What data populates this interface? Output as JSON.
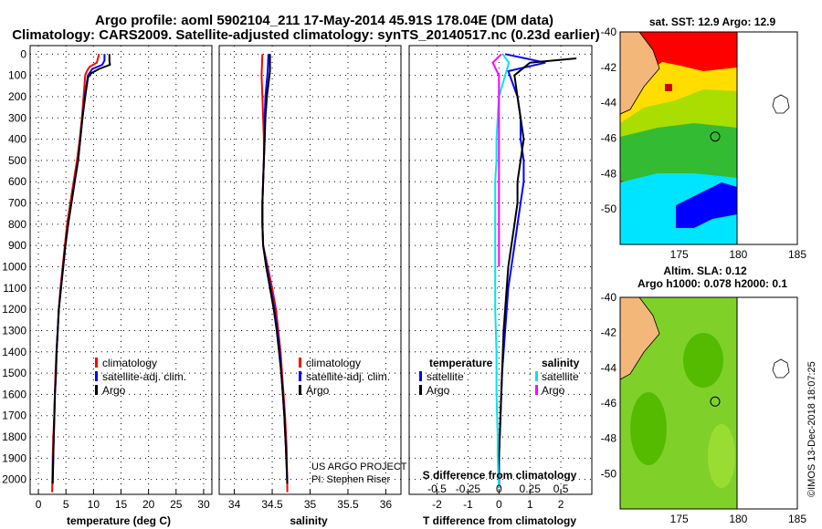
{
  "header": {
    "line1": "Argo profile: aoml 5902104_211 17-May-2014 45.91S 178.04E (DM data)",
    "line2": "Climatology: CARS2009. Satellite-adjusted climatology: synTS_20140517.nc (0.23d earlier)"
  },
  "colors": {
    "climatology": "#ff0000",
    "satellite": "#0000ff",
    "argo": "#000000",
    "salinity_diff": "#00e5ee",
    "argo_salinity_diff": "#ff00ff",
    "land": "#f4b77a"
  },
  "legend": {
    "climatology": "climatology",
    "satellite_adj": "satellite-adj. clim.",
    "argo": "Argo",
    "temperature": "temperature",
    "salinity": "salinity",
    "satellite": "satellite"
  },
  "credit": {
    "line1": "US ARGO PROJECT",
    "line2": "PI: Stephen Riser"
  },
  "side": {
    "sst_title": "sat. SST: 12.9 Argo: 12.9",
    "sla_title1": "Altim. SLA: 0.12",
    "sla_title2": "Argo h1000: 0.078 h2000: 0.1",
    "stamp": "©IMOS 13-Dec-2018 18:07:25"
  },
  "chart_data": [
    {
      "type": "line",
      "xlabel": "temperature (deg C)",
      "ylabel": "",
      "xlim": [
        -1.5,
        31.5
      ],
      "ylim": [
        2070,
        -40
      ],
      "xticks": [
        "0",
        "5",
        "10",
        "15",
        "20",
        "25",
        "30"
      ],
      "yticks": [
        "0",
        "100",
        "200",
        "300",
        "400",
        "500",
        "600",
        "700",
        "800",
        "900",
        "1000",
        "1100",
        "1200",
        "1300",
        "1400",
        "1500",
        "1600",
        "1700",
        "1800",
        "1900",
        "2000"
      ],
      "series": [
        {
          "name": "climatology",
          "x": [
            11.0,
            10.6,
            9.3,
            8.8,
            8.5,
            8.2,
            7.9,
            7.5,
            7.0,
            6.4,
            5.8,
            5.2,
            4.8,
            4.4,
            4.0,
            3.7,
            3.5,
            3.3,
            3.1,
            3.0,
            2.9,
            2.7,
            2.6,
            2.5
          ],
          "y": [
            0,
            40,
            60,
            80,
            100,
            200,
            300,
            400,
            500,
            600,
            700,
            800,
            900,
            1000,
            1100,
            1200,
            1300,
            1400,
            1500,
            1600,
            1700,
            1800,
            1900,
            2060
          ]
        },
        {
          "name": "satellite-adj. clim.",
          "x": [
            12.0,
            12.0,
            11.6,
            9.8,
            9.0,
            8.4,
            8.0,
            7.6,
            7.2,
            6.6,
            6.0,
            5.4,
            4.9,
            4.5,
            4.1,
            3.7,
            3.5,
            3.3,
            3.2,
            3.0,
            2.9,
            2.8,
            2.7,
            2.6
          ],
          "y": [
            0,
            30,
            50,
            70,
            100,
            200,
            300,
            400,
            500,
            600,
            700,
            800,
            900,
            1000,
            1100,
            1200,
            1300,
            1400,
            1500,
            1600,
            1700,
            1800,
            1900,
            2020
          ]
        },
        {
          "name": "Argo",
          "x": [
            12.9,
            12.9,
            13.0,
            11.0,
            9.6,
            9.0,
            8.5,
            8.0,
            7.6,
            7.2,
            6.6,
            6.0,
            5.4,
            4.9,
            4.5,
            4.1,
            3.7,
            3.5,
            3.3,
            3.2,
            3.0,
            2.9,
            2.8,
            2.7,
            2.6
          ],
          "y": [
            0,
            30,
            50,
            70,
            90,
            110,
            200,
            300,
            400,
            500,
            600,
            700,
            800,
            900,
            1000,
            1100,
            1200,
            1300,
            1400,
            1500,
            1600,
            1700,
            1800,
            1900,
            2020
          ]
        }
      ]
    },
    {
      "type": "line",
      "xlabel": "salinity",
      "ylabel": "",
      "xlim": [
        33.8,
        36.2
      ],
      "ylim": [
        2070,
        -40
      ],
      "xticks": [
        "34",
        "34.5",
        "35",
        "35.5",
        "36"
      ],
      "series": [
        {
          "name": "climatology",
          "x": [
            34.37,
            34.36,
            34.37,
            34.38,
            34.39,
            34.39,
            34.38,
            34.37,
            34.37,
            34.38,
            34.44,
            34.5,
            34.55,
            34.58,
            34.61,
            34.63,
            34.65,
            34.67,
            34.69,
            34.7
          ],
          "y": [
            0,
            100,
            200,
            300,
            400,
            500,
            600,
            700,
            800,
            900,
            1000,
            1100,
            1200,
            1300,
            1400,
            1500,
            1600,
            1700,
            1850,
            2060
          ]
        },
        {
          "name": "satellite-adj. clim.",
          "x": [
            34.45,
            34.44,
            34.41,
            34.4,
            34.4,
            34.39,
            34.38,
            34.37,
            34.37,
            34.38,
            34.43,
            34.48,
            34.53,
            34.57,
            34.6,
            34.62,
            34.64,
            34.66,
            34.68,
            34.7
          ],
          "y": [
            0,
            80,
            200,
            300,
            400,
            500,
            600,
            700,
            800,
            900,
            1000,
            1100,
            1200,
            1300,
            1400,
            1500,
            1600,
            1700,
            1850,
            2020
          ]
        },
        {
          "name": "Argo",
          "x": [
            34.47,
            34.47,
            34.43,
            34.41,
            34.4,
            34.39,
            34.38,
            34.37,
            34.37,
            34.38,
            34.42,
            34.47,
            34.52,
            34.56,
            34.59,
            34.62,
            34.64,
            34.66,
            34.68,
            34.7
          ],
          "y": [
            0,
            80,
            200,
            300,
            400,
            500,
            600,
            700,
            800,
            900,
            1000,
            1100,
            1200,
            1300,
            1400,
            1500,
            1600,
            1700,
            1850,
            2020
          ]
        }
      ]
    },
    {
      "type": "line",
      "xlabel": "T difference from climatology",
      "secondary_xlabel": "S difference from climatology",
      "xlim": [
        -2.9,
        3.0
      ],
      "ylim": [
        2070,
        -40
      ],
      "xticks": [
        "-2",
        "-1",
        "0",
        "1",
        "2"
      ],
      "secondary_xticks": [
        "-0.5",
        "-0.25",
        "0",
        "0.25",
        "0.5"
      ],
      "series": [
        {
          "name": "temperature satellite",
          "quantity": "T",
          "x": [
            0.2,
            1.5,
            0.3,
            0.6,
            0.7,
            0.7,
            0.8,
            0.8,
            0.7,
            0.6,
            0.5,
            0.4,
            0.3,
            0.25,
            0.2,
            0.15,
            0.1,
            0.05,
            0.0,
            0.0
          ],
          "y": [
            0,
            40,
            80,
            200,
            300,
            400,
            500,
            600,
            700,
            800,
            900,
            1000,
            1100,
            1200,
            1300,
            1400,
            1500,
            1700,
            1900,
            2040
          ]
        },
        {
          "name": "temperature Argo",
          "quantity": "T",
          "x": [
            2.5,
            1.0,
            0.5,
            0.6,
            0.7,
            0.8,
            0.7,
            0.6,
            0.6,
            0.5,
            0.4,
            0.3,
            0.25,
            0.2,
            0.15,
            0.1,
            0.05,
            0.0,
            0.0
          ],
          "y": [
            20,
            40,
            100,
            200,
            300,
            400,
            500,
            600,
            700,
            800,
            900,
            1000,
            1100,
            1200,
            1300,
            1500,
            1700,
            1900,
            2040
          ]
        },
        {
          "name": "salinity satellite",
          "quantity": "S",
          "x": [
            0.03,
            0.08,
            0.05,
            0.0,
            -0.01,
            -0.02,
            -0.02,
            -0.03,
            -0.03,
            -0.03,
            -0.03,
            -0.03,
            -0.02,
            -0.02,
            -0.01,
            -0.01,
            0.0
          ],
          "y": [
            0,
            40,
            100,
            200,
            300,
            400,
            500,
            600,
            700,
            800,
            1000,
            1200,
            1400,
            1600,
            1800,
            1900,
            2040
          ]
        },
        {
          "name": "salinity Argo",
          "quantity": "S",
          "x": [
            0.02,
            -0.05,
            0.0,
            0.0,
            0.0
          ],
          "y": [
            0,
            40,
            100,
            200,
            1000
          ]
        }
      ]
    },
    {
      "type": "heatmap",
      "title": "sat. SST: 12.9 Argo: 12.9",
      "xlim": [
        170,
        185
      ],
      "ylim": [
        -52,
        -40
      ],
      "xticks": [
        "175",
        "180",
        "185"
      ],
      "yticks": [
        "-40",
        "-42",
        "-44",
        "-46",
        "-48",
        "-50"
      ],
      "marker": {
        "lon": 178.04,
        "lat": -45.91
      }
    },
    {
      "type": "heatmap",
      "title": "Altim. SLA: 0.12",
      "subtitle": "Argo h1000: 0.078 h2000: 0.1",
      "xlim": [
        170,
        185
      ],
      "ylim": [
        -52,
        -40
      ],
      "xticks": [
        "175",
        "180",
        "185"
      ],
      "yticks": [
        "-40",
        "-42",
        "-44",
        "-46",
        "-48",
        "-50"
      ],
      "marker": {
        "lon": 178.04,
        "lat": -45.91
      }
    }
  ]
}
